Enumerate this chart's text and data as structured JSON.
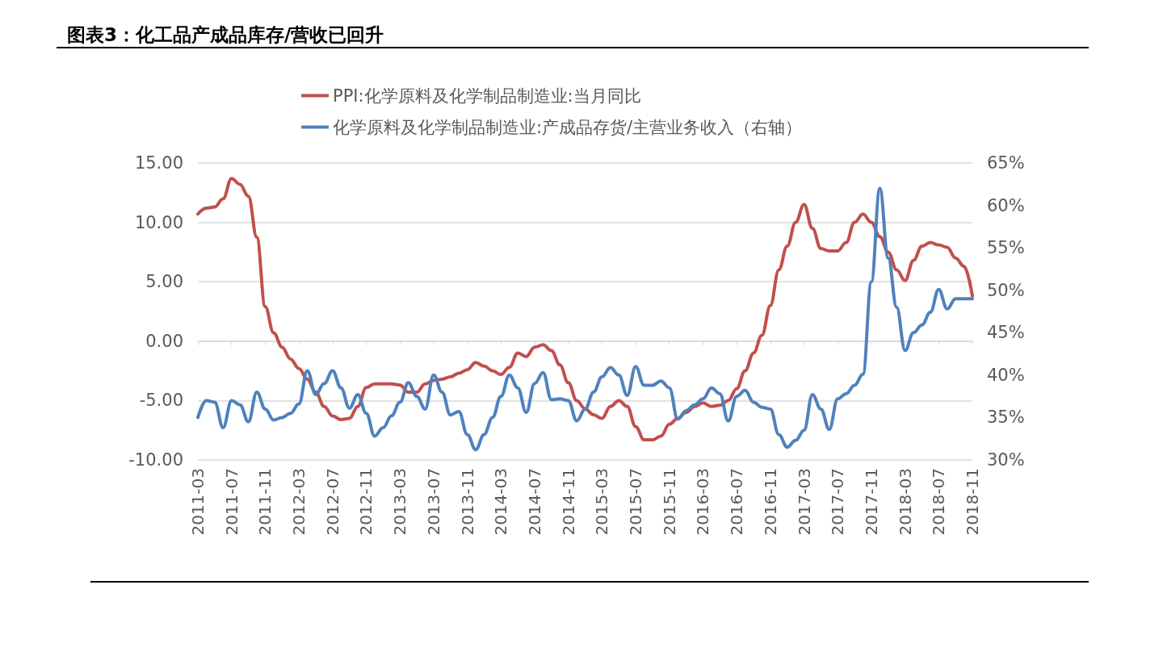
{
  "chart_data": {
    "type": "line",
    "title": "图表3：化工品产成品库存/营收已回升",
    "categories": [
      "2011-03",
      null,
      null,
      null,
      "2011-07",
      null,
      null,
      null,
      "2011-11",
      null,
      null,
      null,
      "2012-03",
      null,
      null,
      null,
      "2012-07",
      null,
      null,
      null,
      "2012-11",
      null,
      null,
      null,
      "2013-03",
      null,
      null,
      null,
      "2013-07",
      null,
      null,
      null,
      "2013-11",
      null,
      null,
      null,
      "2014-03",
      null,
      null,
      null,
      "2014-07",
      null,
      null,
      null,
      "2014-11",
      null,
      null,
      null,
      "2015-03",
      null,
      null,
      null,
      "2015-07",
      null,
      null,
      null,
      "2015-11",
      null,
      null,
      null,
      "2016-03",
      null,
      null,
      null,
      "2016-07",
      null,
      null,
      null,
      "2016-11",
      null,
      null,
      null,
      "2017-03",
      null,
      null,
      null,
      "2017-07",
      null,
      null,
      null,
      "2017-11",
      null,
      null,
      null,
      "2018-03",
      null,
      null,
      null,
      "2018-07",
      null,
      null,
      null,
      "2018-11"
    ],
    "series": [
      {
        "name": "PPI:化学原料及化学制品制造业:当月同比",
        "color": "#c0504d",
        "values": [
          10.7,
          11.2,
          11.3,
          12.0,
          13.7,
          13.2,
          12.2,
          8.75,
          2.9,
          0.7,
          -0.5,
          -1.5,
          -2.3,
          -3.2,
          -4.3,
          -5.5,
          -6.3,
          -6.6,
          -6.5,
          -5.5,
          -3.9,
          -3.6,
          -3.6,
          -3.6,
          -3.7,
          -4.3,
          -4.3,
          -3.6,
          -3.3,
          -3.2,
          -3.0,
          -2.7,
          -2.4,
          -1.8,
          -2.1,
          -2.5,
          -2.8,
          -2.2,
          -1.0,
          -1.3,
          -0.5,
          -0.3,
          -0.8,
          -2.0,
          -3.5,
          -5.0,
          -5.7,
          -6.2,
          -6.5,
          -5.5,
          -5.0,
          -5.5,
          -7.2,
          -8.3,
          -8.3,
          -8.0,
          -7.0,
          -6.5,
          -6.0,
          -5.5,
          -5.2,
          -5.5,
          -5.4,
          -5.0,
          -4.0,
          -2.5,
          -1.0,
          0.5,
          3.0,
          6.0,
          8.0,
          10.0,
          11.5,
          9.5,
          7.8,
          7.6,
          7.6,
          8.3,
          10.0,
          10.7,
          10.0,
          8.8,
          7.5,
          6.0,
          5.1,
          6.8,
          8.0,
          8.3,
          8.1,
          7.9,
          7.0,
          6.3,
          3.8
        ]
      },
      {
        "name": "化学原料及化学制品制造业:产成品存货/主营业务收入（右轴）",
        "color": "#4f81bd",
        "axis": "y2",
        "values": [
          35.0,
          37.0,
          36.8,
          33.8,
          37.0,
          36.5,
          34.5,
          38.0,
          36.0,
          34.7,
          35.0,
          35.5,
          36.6,
          40.5,
          37.7,
          39.0,
          40.5,
          38.5,
          36.1,
          37.7,
          35.5,
          32.8,
          33.8,
          35.2,
          36.8,
          39.1,
          37.5,
          36.0,
          40.0,
          38.0,
          35.3,
          35.7,
          33.0,
          31.2,
          33.0,
          35.0,
          37.5,
          40.0,
          38.5,
          35.6,
          39.0,
          40.3,
          37.1,
          37.2,
          37.0,
          34.6,
          36.0,
          38.0,
          39.8,
          40.9,
          40.0,
          37.6,
          41.0,
          38.8,
          38.8,
          39.3,
          38.5,
          34.8,
          35.8,
          36.5,
          37.2,
          38.5,
          37.8,
          34.6,
          37.5,
          38.2,
          36.8,
          36.2,
          36.0,
          33.0,
          31.5,
          32.3,
          33.5,
          37.7,
          36.0,
          33.6,
          37.2,
          37.8,
          38.8,
          40.1,
          51.0,
          62.0,
          53.8,
          48.0,
          42.9,
          45.0,
          45.9,
          47.4,
          50.1,
          47.8,
          49.0,
          49.0,
          49.0
        ]
      }
    ],
    "ylim": [
      -10,
      15
    ],
    "yticks": [
      {
        "value": -10,
        "label": "-10.00"
      },
      {
        "value": -5,
        "label": "-5.00"
      },
      {
        "value": 0,
        "label": "0.00"
      },
      {
        "value": 5,
        "label": "5.00"
      },
      {
        "value": 10,
        "label": "10.00"
      },
      {
        "value": 15,
        "label": "15.00"
      }
    ],
    "y2lim": [
      30,
      65
    ],
    "y2ticks": [
      {
        "value": 30,
        "label": "30%"
      },
      {
        "value": 35,
        "label": "35%"
      },
      {
        "value": 40,
        "label": "40%"
      },
      {
        "value": 45,
        "label": "45%"
      },
      {
        "value": 50,
        "label": "50%"
      },
      {
        "value": 55,
        "label": "55%"
      },
      {
        "value": 60,
        "label": "60%"
      },
      {
        "value": 65,
        "label": "65%"
      }
    ],
    "grid": "y",
    "legend": "top",
    "marker": "none",
    "line_style": "solid"
  }
}
